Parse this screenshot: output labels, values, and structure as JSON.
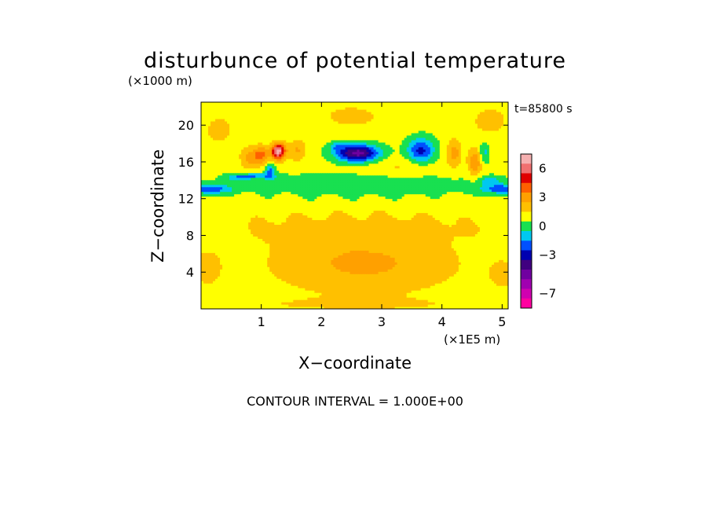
{
  "chart_data": {
    "type": "heatmap",
    "title": "disturbunce of potential temperature",
    "y_unit": "(×1000 m)",
    "x_unit": "(×1E5 m)",
    "xlabel": "X−coordinate",
    "ylabel": "Z−coordinate",
    "time_label": "t=85800 s",
    "footer": "CONTOUR INTERVAL = 1.000E+00",
    "xlim": [
      0,
      5.1
    ],
    "ylim": [
      0,
      22.5
    ],
    "x_ticks": [
      1,
      2,
      3,
      4,
      5
    ],
    "y_ticks": [
      4,
      8,
      12,
      16,
      20
    ],
    "colorbar": {
      "levels": [
        7,
        6,
        5,
        4,
        3,
        2,
        1,
        0,
        -1,
        -2,
        -3,
        -4,
        -5,
        -6,
        -7,
        -8
      ],
      "labeled_levels": [
        6,
        3,
        0,
        -3,
        -7
      ],
      "colors": [
        "#f5b0b0",
        "#f07070",
        "#e00000",
        "#ff6000",
        "#ffa000",
        "#ffc000",
        "#ffff00",
        "#18e050",
        "#00c8f0",
        "#0050ff",
        "#0000b0",
        "#400080",
        "#7000a0",
        "#a000b0",
        "#d000b0",
        "#ff00a0"
      ]
    },
    "field_features": [
      {
        "x": 2.6,
        "z": 17.0,
        "value": -5
      },
      {
        "x": 3.65,
        "z": 17.5,
        "value": -3
      },
      {
        "x": 1.25,
        "z": 17.0,
        "value": 6
      },
      {
        "x": 0.75,
        "z": 17.0,
        "value": 2
      },
      {
        "x": 2.7,
        "z": 5.0,
        "value": 2
      },
      {
        "x": 0.1,
        "z": 13.0,
        "value": -3
      },
      {
        "x": 5.0,
        "z": 13.0,
        "value": -3
      },
      {
        "x": 2.6,
        "z": 9.0,
        "value": 1
      },
      {
        "x": 1.0,
        "z": 1.0,
        "value": 1
      }
    ]
  }
}
